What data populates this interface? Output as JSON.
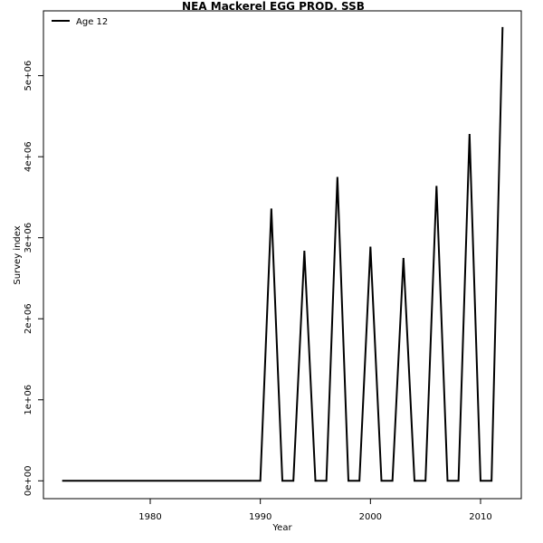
{
  "chart_data": {
    "type": "line",
    "title": "NEA Mackerel  EGG PROD. SSB",
    "xlabel": "Year",
    "ylabel": "Survey index",
    "xlim": [
      1970.3,
      2013.7
    ],
    "ylim": [
      -220000,
      5800000
    ],
    "x_ticks": [
      1980,
      1990,
      2000,
      2010
    ],
    "y_ticks": [
      0,
      1000000,
      2000000,
      3000000,
      4000000,
      5000000
    ],
    "y_tick_labels": [
      "0e+00",
      "1e+06",
      "2e+06",
      "3e+06",
      "4e+06",
      "5e+06"
    ],
    "legend": {
      "position": "top-left",
      "entries": [
        "Age 12"
      ]
    },
    "grid": false,
    "series": [
      {
        "name": "Age 12",
        "color": "#000000",
        "x": [
          1972,
          1973,
          1974,
          1975,
          1976,
          1977,
          1978,
          1979,
          1980,
          1981,
          1982,
          1983,
          1984,
          1985,
          1986,
          1987,
          1988,
          1989,
          1990,
          1991,
          1992,
          1993,
          1994,
          1995,
          1996,
          1997,
          1998,
          1999,
          2000,
          2001,
          2002,
          2003,
          2004,
          2005,
          2006,
          2007,
          2008,
          2009,
          2010,
          2011,
          2012
        ],
        "y": [
          0,
          0,
          0,
          0,
          0,
          0,
          0,
          0,
          0,
          0,
          0,
          0,
          0,
          0,
          0,
          0,
          0,
          0,
          0,
          3360000,
          0,
          0,
          2840000,
          0,
          0,
          3750000,
          0,
          0,
          2890000,
          0,
          0,
          2750000,
          0,
          0,
          3640000,
          0,
          0,
          4280000,
          0,
          0,
          5600000
        ]
      }
    ]
  }
}
